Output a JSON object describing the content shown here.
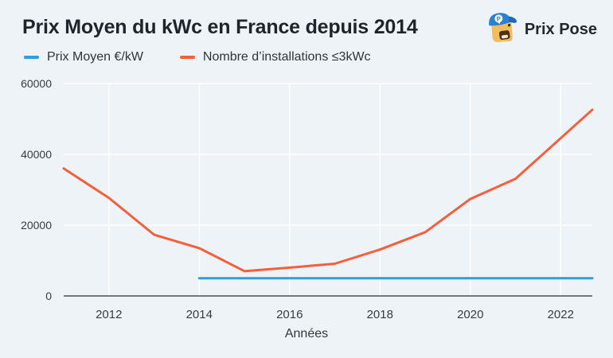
{
  "header": {
    "title": "Prix Moyen du kWc en France depuis 2014",
    "logo_text": "Prix Pose"
  },
  "colors": {
    "background": "#edf3f7",
    "prix_moyen_blue": "#2f9fd8",
    "installations_orange": "#f55f3b",
    "logo_cap_blue": "#2b80cf",
    "logo_face_yellow": "#f2bd5e"
  },
  "chart_data": {
    "type": "line",
    "title": "Prix Moyen du kWc en France depuis 2014",
    "xlabel": "Années",
    "ylabel": "",
    "xlim": [
      2011,
      2022.7
    ],
    "ylim": [
      0,
      60000
    ],
    "x_ticks": [
      2012,
      2014,
      2016,
      2018,
      2020,
      2022
    ],
    "y_ticks": [
      0,
      20000,
      40000,
      60000
    ],
    "grid": true,
    "grid_color": "#ffffff",
    "axis_color": "#4a4e52",
    "tick_label_color": "#383c42",
    "legend_position": "top-left",
    "series": [
      {
        "name": "Prix Moyen €/kW",
        "color": "#2f9fd8",
        "x": [
          2014,
          2022.7
        ],
        "y": [
          5000,
          5000
        ]
      },
      {
        "name": "Nombre d’installations ≤3kWc",
        "color": "#f55f3b",
        "x": [
          2011,
          2012,
          2013,
          2014,
          2015,
          2016,
          2017,
          2018,
          2019,
          2020,
          2021,
          2022.7
        ],
        "y": [
          36000,
          27700,
          17300,
          13500,
          7000,
          8000,
          9100,
          13100,
          18000,
          27400,
          33100,
          52600
        ]
      }
    ]
  }
}
